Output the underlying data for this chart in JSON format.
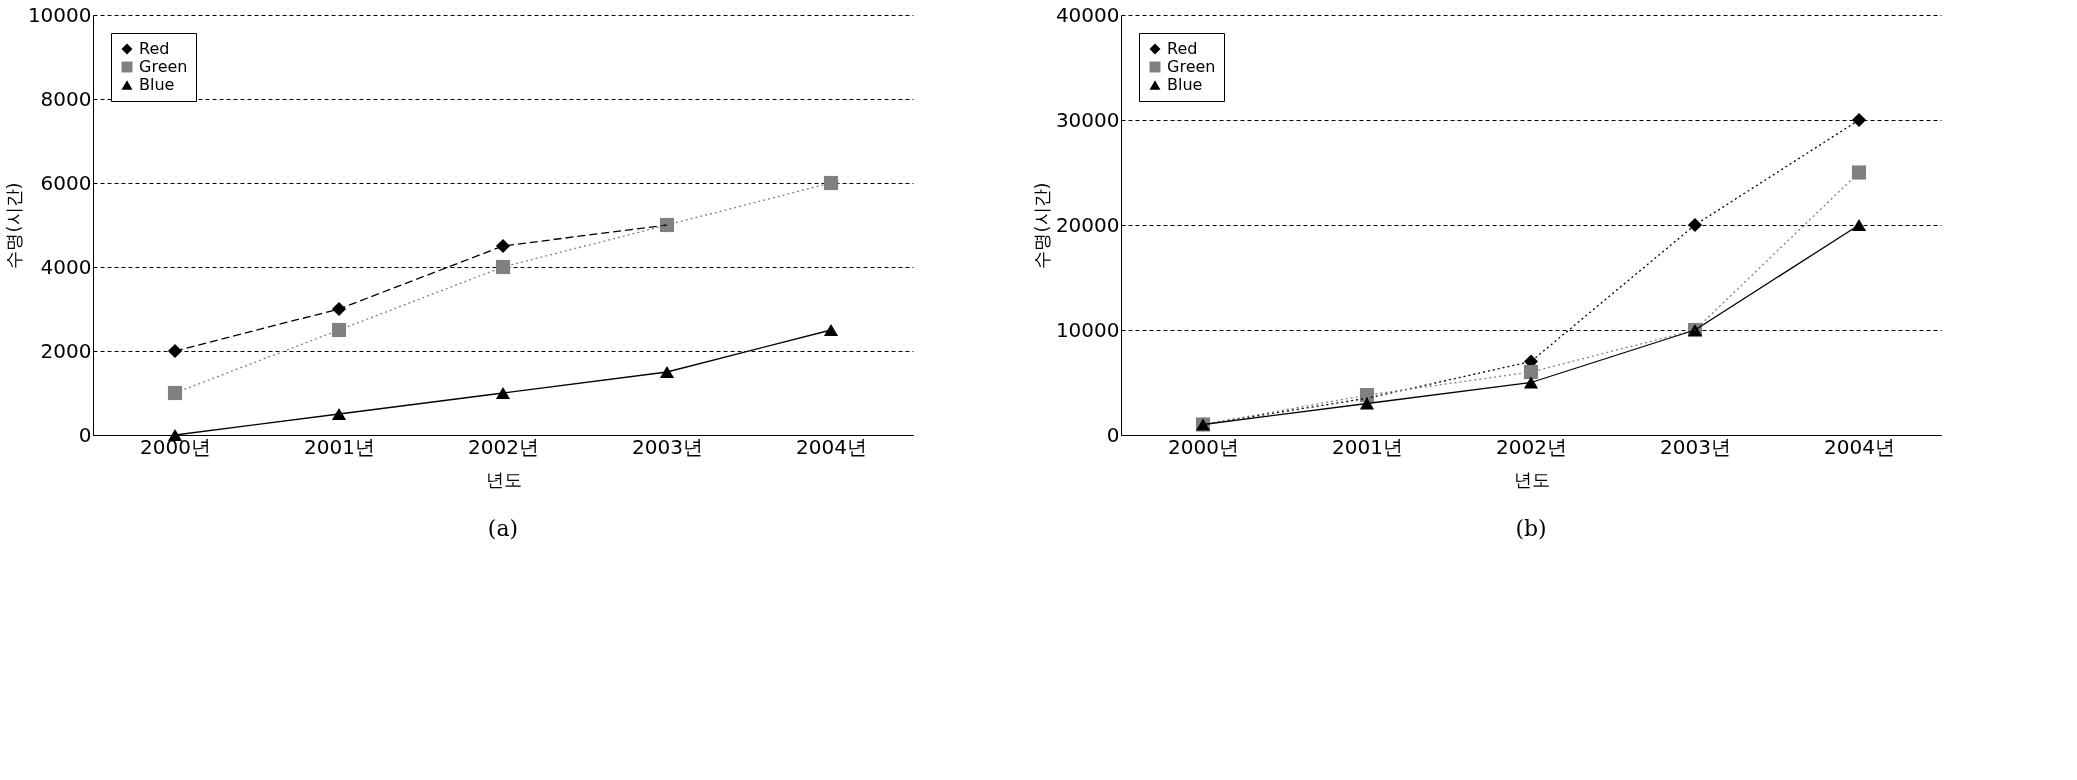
{
  "chart_data": [
    {
      "type": "line",
      "title": "(a)",
      "xlabel": "년도",
      "ylabel": "수명(시간)",
      "categories": [
        "2000년",
        "2001년",
        "2002년",
        "2003년",
        "2004년"
      ],
      "ylim": [
        0,
        10000
      ],
      "yticks": [
        0,
        2000,
        4000,
        6000,
        8000,
        10000
      ],
      "grid": "y",
      "legend": "top left",
      "series": [
        {
          "name": "Red",
          "color": "#000000",
          "marker": "diamond",
          "line_style": "dashed",
          "values": [
            2000,
            3000,
            4500,
            5000,
            null
          ]
        },
        {
          "name": "Green",
          "color": "#808080",
          "marker": "square",
          "line_style": "dotted",
          "values": [
            1000,
            2500,
            4000,
            5000,
            6000
          ]
        },
        {
          "name": "Blue",
          "color": "#000000",
          "marker": "triangle",
          "line_style": "solid",
          "values": [
            0,
            500,
            1000,
            1500,
            2500
          ]
        }
      ]
    },
    {
      "type": "line",
      "title": "(b)",
      "xlabel": "년도",
      "ylabel": "수명(시간)",
      "categories": [
        "2000년",
        "2001년",
        "2002년",
        "2003년",
        "2004년"
      ],
      "ylim": [
        0,
        40000
      ],
      "yticks": [
        0,
        10000,
        20000,
        30000,
        40000
      ],
      "grid": "y",
      "legend": "top left",
      "series": [
        {
          "name": "Red",
          "color": "#000000",
          "marker": "diamond",
          "line_style": "dotted",
          "values": [
            1000,
            3500,
            7000,
            20000,
            30000
          ]
        },
        {
          "name": "Green",
          "color": "#808080",
          "marker": "square",
          "line_style": "dotted",
          "values": [
            1000,
            3800,
            6000,
            10000,
            25000
          ]
        },
        {
          "name": "Blue",
          "color": "#000000",
          "marker": "triangle",
          "line_style": "solid",
          "values": [
            1000,
            3000,
            5000,
            10000,
            20000
          ]
        }
      ]
    }
  ]
}
